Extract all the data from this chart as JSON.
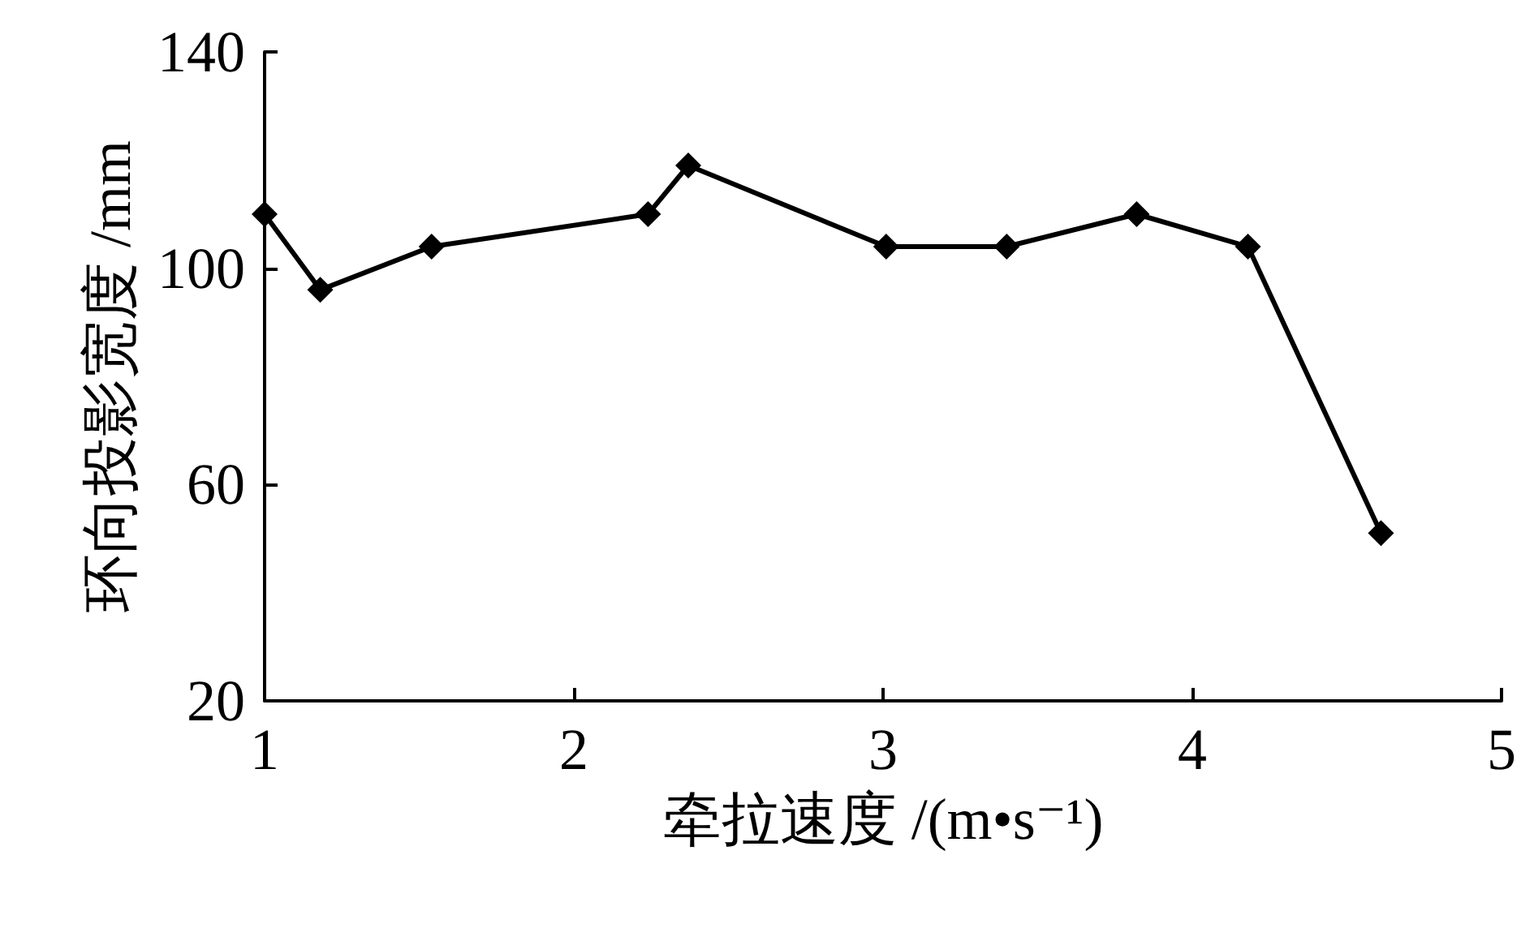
{
  "chart_data": {
    "type": "line",
    "xlabel": "牵拉速度 /(m•s⁻¹)",
    "ylabel": "环向投影宽度 /mm",
    "x": [
      1.0,
      1.18,
      1.54,
      2.24,
      2.37,
      3.01,
      3.4,
      3.82,
      4.18,
      4.61
    ],
    "series": [
      {
        "color": "#000000",
        "values": [
          110,
          96,
          104,
          110,
          119,
          104,
          104,
          110,
          104,
          51
        ]
      }
    ],
    "xlim": [
      1,
      5
    ],
    "xticks": [
      1,
      2,
      3,
      4,
      5
    ],
    "ylim": [
      20,
      140
    ],
    "yticks": [
      20,
      60,
      100,
      140
    ],
    "marker": "diamond",
    "line_style": "solid",
    "grid": false
  }
}
